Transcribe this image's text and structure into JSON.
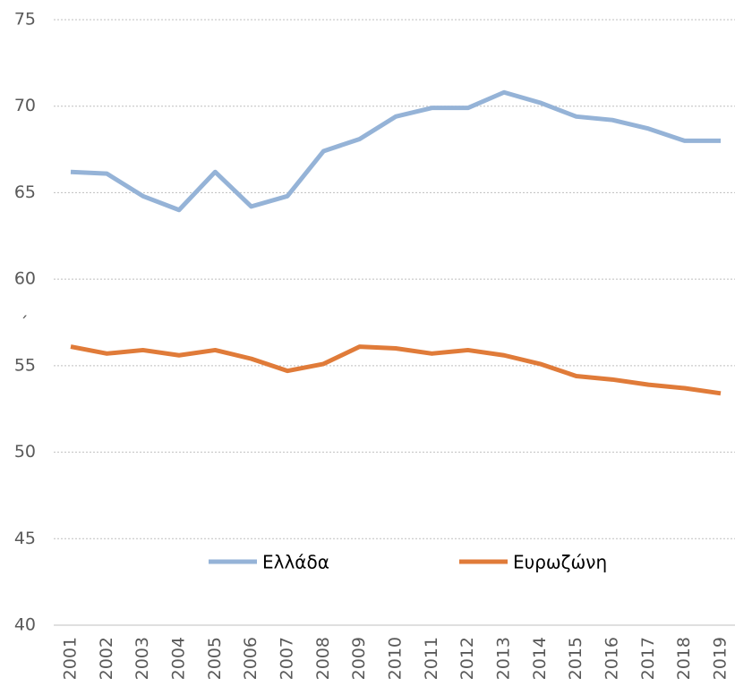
{
  "chart_data": {
    "type": "line",
    "categories": [
      "2001",
      "2002",
      "2003",
      "2004",
      "2005",
      "2006",
      "2007",
      "2008",
      "2009",
      "2010",
      "2011",
      "2012",
      "2013",
      "2014",
      "2015",
      "2016",
      "2017",
      "2018",
      "2019"
    ],
    "series": [
      {
        "name": "Ελλάδα",
        "color": "#95b3d7",
        "values": [
          66.2,
          66.1,
          64.8,
          64.0,
          66.2,
          64.2,
          64.8,
          67.4,
          68.1,
          69.4,
          69.9,
          69.9,
          70.8,
          70.2,
          69.4,
          69.2,
          68.7,
          68.0,
          68.0
        ]
      },
      {
        "name": "Ευρωζώνη",
        "color": "#e07b39",
        "values": [
          56.1,
          55.7,
          55.9,
          55.6,
          55.9,
          55.4,
          54.7,
          55.1,
          56.1,
          56.0,
          55.7,
          55.9,
          55.6,
          55.1,
          54.4,
          54.2,
          53.9,
          53.7,
          53.4
        ]
      }
    ],
    "annotation": "´",
    "ylim": [
      40,
      75
    ],
    "yticks": [
      40,
      45,
      50,
      55,
      60,
      65,
      70,
      75
    ],
    "grid": true,
    "legend": "bottom"
  }
}
